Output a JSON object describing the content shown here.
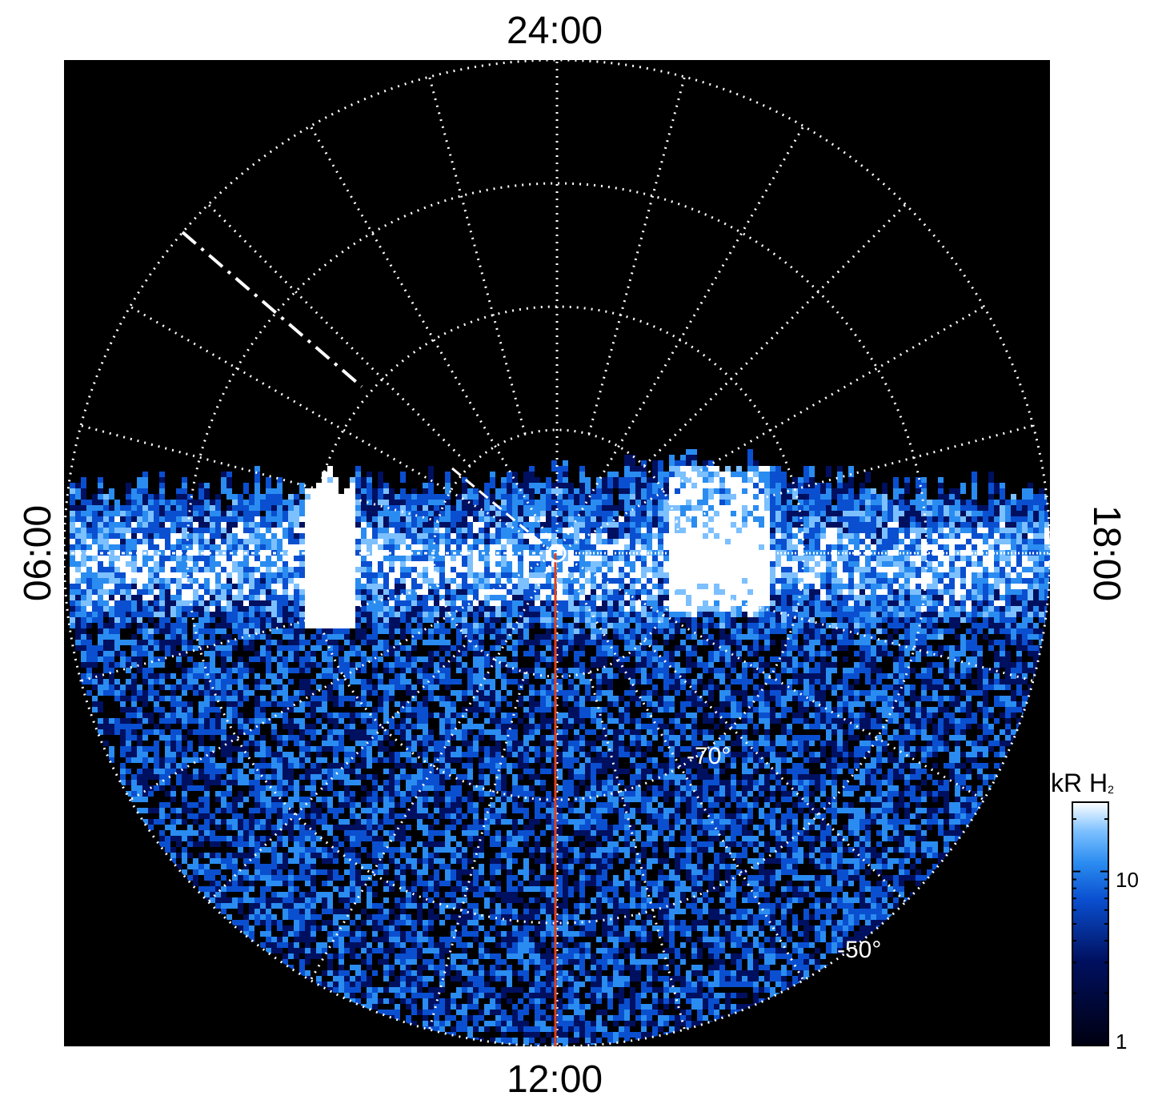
{
  "chart_data": {
    "type": "heatmap",
    "projection": "polar",
    "local_time_labels": {
      "top": "24:00",
      "bottom": "12:00",
      "left": "06:00",
      "right": "18:00"
    },
    "latitude_labels": [
      "-70°",
      "-50°"
    ],
    "colorbar": {
      "title": "kR H",
      "title_subscript": "2",
      "scale": "log",
      "range": [
        1,
        25
      ],
      "ticks": [
        "10",
        "1"
      ],
      "colors": [
        "#000010",
        "#001060",
        "#0a4fd0",
        "#2a8cf0",
        "#7cc0ff",
        "#ffffff"
      ]
    },
    "grid": true,
    "background": "#000000",
    "accent_line_color": "#e0401a",
    "grid_color": "#ffffff"
  }
}
